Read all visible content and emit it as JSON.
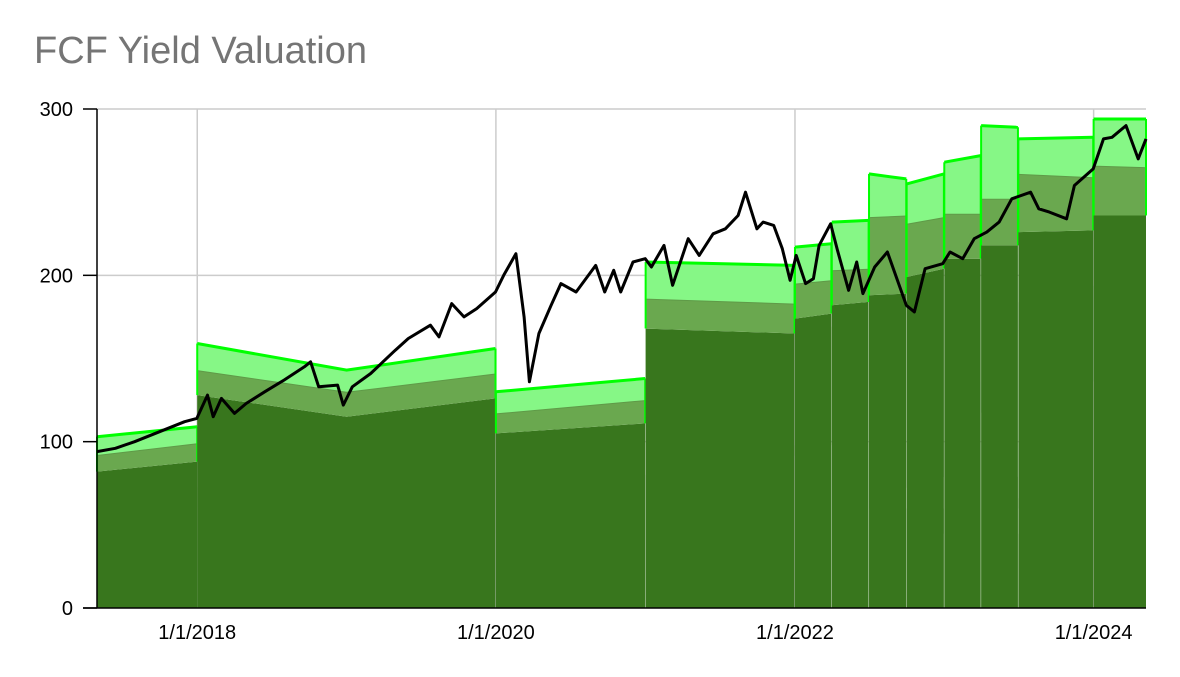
{
  "chart_data": {
    "type": "area",
    "title": "FCF Yield Valuation",
    "xlabel": "",
    "ylabel": "",
    "x_range": [
      "2017-05-01",
      "2024-05-08"
    ],
    "ylim": [
      0,
      300
    ],
    "y_ticks": [
      0,
      100,
      200,
      300
    ],
    "x_ticks": [
      "1/1/2018",
      "1/1/2020",
      "1/1/2022",
      "1/1/2024"
    ],
    "x_tick_dates": [
      "2018-01-01",
      "2020-01-01",
      "2022-01-01",
      "2024-01-01"
    ],
    "grid": true,
    "legend": "none",
    "colors": {
      "base": "#38761d",
      "band_mid": "#6aa84f",
      "band_top": "#86f786",
      "edge": "#00ff00",
      "price": "#000000",
      "grid": "#cccccc"
    },
    "series": [
      {
        "role": "base",
        "segments": [
          {
            "points": [
              [
                "2017-05-01",
                82
              ],
              [
                "2018-01-01",
                88
              ]
            ]
          },
          {
            "points": [
              [
                "2018-01-01",
                128
              ],
              [
                "2019-01-01",
                115
              ],
              [
                "2019-12-31",
                126
              ]
            ]
          },
          {
            "points": [
              [
                "2020-01-01",
                105
              ],
              [
                "2020-12-31",
                111
              ]
            ]
          },
          {
            "points": [
              [
                "2021-01-01",
                168
              ],
              [
                "2021-12-31",
                165
              ]
            ]
          },
          {
            "points": [
              [
                "2022-01-01",
                174
              ],
              [
                "2022-03-31",
                177
              ]
            ]
          },
          {
            "points": [
              [
                "2022-04-01",
                182
              ],
              [
                "2022-06-30",
                184
              ]
            ]
          },
          {
            "points": [
              [
                "2022-07-01",
                188
              ],
              [
                "2022-09-30",
                189
              ]
            ]
          },
          {
            "points": [
              [
                "2022-10-01",
                199
              ],
              [
                "2022-12-31",
                204
              ]
            ]
          },
          {
            "points": [
              [
                "2023-01-01",
                210
              ],
              [
                "2023-03-31",
                210
              ]
            ]
          },
          {
            "points": [
              [
                "2023-04-01",
                218
              ],
              [
                "2023-06-30",
                218
              ]
            ]
          },
          {
            "points": [
              [
                "2023-07-01",
                226
              ],
              [
                "2023-12-31",
                227
              ]
            ]
          },
          {
            "points": [
              [
                "2024-01-01",
                236
              ],
              [
                "2024-05-08",
                236
              ]
            ]
          }
        ]
      },
      {
        "role": "mid",
        "segments": [
          {
            "points": [
              [
                "2017-05-01",
                92
              ],
              [
                "2018-01-01",
                99
              ]
            ]
          },
          {
            "points": [
              [
                "2018-01-01",
                143
              ],
              [
                "2019-01-01",
                130
              ],
              [
                "2019-12-31",
                141
              ]
            ]
          },
          {
            "points": [
              [
                "2020-01-01",
                117
              ],
              [
                "2020-12-31",
                125
              ]
            ]
          },
          {
            "points": [
              [
                "2021-01-01",
                186
              ],
              [
                "2021-12-31",
                183
              ]
            ]
          },
          {
            "points": [
              [
                "2022-01-01",
                195
              ],
              [
                "2022-03-31",
                197
              ]
            ]
          },
          {
            "points": [
              [
                "2022-04-01",
                203
              ],
              [
                "2022-06-30",
                204
              ]
            ]
          },
          {
            "points": [
              [
                "2022-07-01",
                235
              ],
              [
                "2022-09-30",
                236
              ]
            ]
          },
          {
            "points": [
              [
                "2022-10-01",
                231
              ],
              [
                "2022-12-31",
                235
              ]
            ]
          },
          {
            "points": [
              [
                "2023-01-01",
                237
              ],
              [
                "2023-03-31",
                237
              ]
            ]
          },
          {
            "points": [
              [
                "2023-04-01",
                246
              ],
              [
                "2023-06-30",
                246
              ]
            ]
          },
          {
            "points": [
              [
                "2023-07-01",
                261
              ],
              [
                "2023-12-31",
                259
              ]
            ]
          },
          {
            "points": [
              [
                "2024-01-01",
                266
              ],
              [
                "2024-05-08",
                265
              ]
            ]
          }
        ]
      },
      {
        "role": "top",
        "segments": [
          {
            "points": [
              [
                "2017-05-01",
                103
              ],
              [
                "2018-01-01",
                109
              ]
            ]
          },
          {
            "points": [
              [
                "2018-01-01",
                159
              ],
              [
                "2019-01-01",
                143
              ],
              [
                "2019-12-31",
                156
              ]
            ]
          },
          {
            "points": [
              [
                "2020-01-01",
                130
              ],
              [
                "2020-12-31",
                138
              ]
            ]
          },
          {
            "points": [
              [
                "2021-01-01",
                208
              ],
              [
                "2021-12-31",
                206
              ]
            ]
          },
          {
            "points": [
              [
                "2022-01-01",
                217
              ],
              [
                "2022-03-31",
                219
              ]
            ]
          },
          {
            "points": [
              [
                "2022-04-01",
                232
              ],
              [
                "2022-06-30",
                233
              ]
            ]
          },
          {
            "points": [
              [
                "2022-07-01",
                261
              ],
              [
                "2022-09-30",
                258
              ]
            ]
          },
          {
            "points": [
              [
                "2022-10-01",
                255
              ],
              [
                "2022-12-31",
                261
              ]
            ]
          },
          {
            "points": [
              [
                "2023-01-01",
                268
              ],
              [
                "2023-03-31",
                272
              ]
            ]
          },
          {
            "points": [
              [
                "2023-04-01",
                290
              ],
              [
                "2023-06-30",
                289
              ]
            ]
          },
          {
            "points": [
              [
                "2023-07-01",
                282
              ],
              [
                "2023-12-31",
                283
              ]
            ]
          },
          {
            "points": [
              [
                "2024-01-01",
                294
              ],
              [
                "2024-05-08",
                294
              ]
            ]
          }
        ]
      },
      {
        "role": "price",
        "points": [
          [
            "2017-05-01",
            94
          ],
          [
            "2017-06-15",
            96
          ],
          [
            "2017-08-01",
            100
          ],
          [
            "2017-10-01",
            106
          ],
          [
            "2017-12-01",
            112
          ],
          [
            "2017-12-31",
            114
          ],
          [
            "2018-01-26",
            128
          ],
          [
            "2018-02-09",
            115
          ],
          [
            "2018-03-01",
            126
          ],
          [
            "2018-04-02",
            117
          ],
          [
            "2018-05-01",
            123
          ],
          [
            "2018-06-15",
            130
          ],
          [
            "2018-08-01",
            137
          ],
          [
            "2018-09-20",
            145
          ],
          [
            "2018-10-05",
            148
          ],
          [
            "2018-10-25",
            133
          ],
          [
            "2018-12-10",
            134
          ],
          [
            "2018-12-24",
            122
          ],
          [
            "2019-01-15",
            133
          ],
          [
            "2019-03-01",
            141
          ],
          [
            "2019-04-30",
            155
          ],
          [
            "2019-06-01",
            162
          ],
          [
            "2019-07-25",
            170
          ],
          [
            "2019-08-15",
            163
          ],
          [
            "2019-09-15",
            183
          ],
          [
            "2019-10-15",
            175
          ],
          [
            "2019-11-15",
            180
          ],
          [
            "2019-12-31",
            190
          ],
          [
            "2020-01-20",
            200
          ],
          [
            "2020-02-19",
            213
          ],
          [
            "2020-03-10",
            175
          ],
          [
            "2020-03-23",
            136
          ],
          [
            "2020-04-15",
            165
          ],
          [
            "2020-05-15",
            182
          ],
          [
            "2020-06-08",
            195
          ],
          [
            "2020-07-15",
            190
          ],
          [
            "2020-09-01",
            206
          ],
          [
            "2020-09-23",
            190
          ],
          [
            "2020-10-15",
            203
          ],
          [
            "2020-11-01",
            190
          ],
          [
            "2020-12-01",
            208
          ],
          [
            "2020-12-31",
            210
          ],
          [
            "2021-01-15",
            205
          ],
          [
            "2021-02-15",
            218
          ],
          [
            "2021-03-08",
            194
          ],
          [
            "2021-04-15",
            222
          ],
          [
            "2021-05-12",
            212
          ],
          [
            "2021-06-15",
            225
          ],
          [
            "2021-07-15",
            228
          ],
          [
            "2021-08-15",
            236
          ],
          [
            "2021-09-02",
            250
          ],
          [
            "2021-09-30",
            228
          ],
          [
            "2021-10-15",
            232
          ],
          [
            "2021-11-10",
            230
          ],
          [
            "2021-12-01",
            216
          ],
          [
            "2021-12-20",
            197
          ],
          [
            "2022-01-04",
            212
          ],
          [
            "2022-01-27",
            195
          ],
          [
            "2022-02-15",
            198
          ],
          [
            "2022-03-01",
            218
          ],
          [
            "2022-03-29",
            231
          ],
          [
            "2022-04-15",
            215
          ],
          [
            "2022-05-12",
            191
          ],
          [
            "2022-06-01",
            208
          ],
          [
            "2022-06-16",
            189
          ],
          [
            "2022-07-15",
            205
          ],
          [
            "2022-08-15",
            214
          ],
          [
            "2022-09-30",
            182
          ],
          [
            "2022-10-20",
            178
          ],
          [
            "2022-11-15",
            204
          ],
          [
            "2022-12-28",
            207
          ],
          [
            "2023-01-15",
            214
          ],
          [
            "2023-02-15",
            210
          ],
          [
            "2023-03-15",
            222
          ],
          [
            "2023-04-15",
            226
          ],
          [
            "2023-05-15",
            232
          ],
          [
            "2023-06-15",
            246
          ],
          [
            "2023-07-31",
            250
          ],
          [
            "2023-08-20",
            240
          ],
          [
            "2023-09-15",
            238
          ],
          [
            "2023-10-27",
            234
          ],
          [
            "2023-11-15",
            254
          ],
          [
            "2023-12-31",
            264
          ],
          [
            "2024-01-25",
            282
          ],
          [
            "2024-02-15",
            283
          ],
          [
            "2024-03-20",
            290
          ],
          [
            "2024-04-19",
            270
          ],
          [
            "2024-05-08",
            282
          ]
        ]
      }
    ]
  }
}
